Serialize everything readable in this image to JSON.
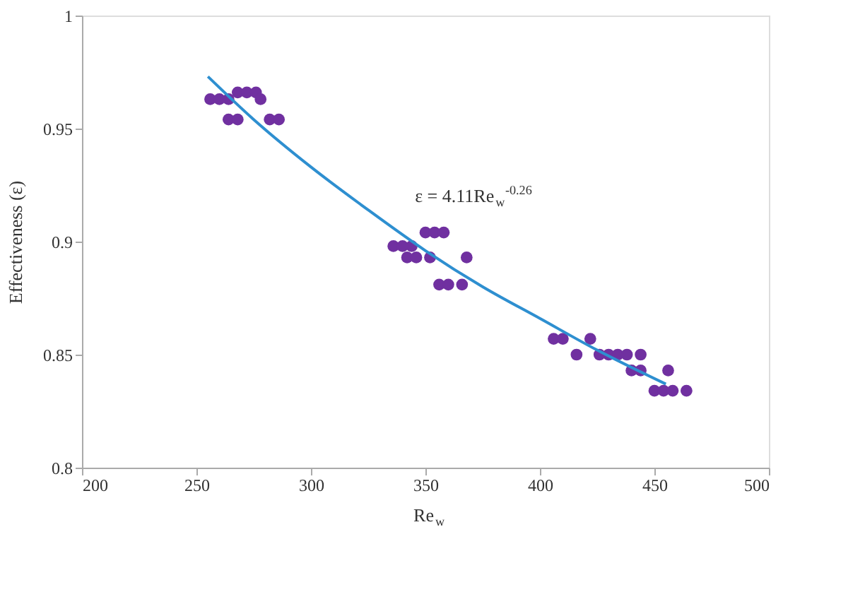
{
  "chart_data": {
    "type": "scatter",
    "xlabel": "Re$_{w}$",
    "ylabel": "Effectiveness (ε)",
    "xlim": [
      200,
      500
    ],
    "xticks": [
      200,
      250,
      300,
      350,
      400,
      450,
      500
    ],
    "ylim": [
      0.8,
      1
    ],
    "yticks": [
      0.8,
      0.85,
      0.9,
      0.95,
      1
    ],
    "grid": false,
    "marker": "circle",
    "annotations": [
      "ε = 4.11Re$_{w}$$^{-0.26}$"
    ],
    "series": [
      {
        "color": "#7030a0",
        "x": [
          256,
          260,
          264,
          268,
          272,
          276,
          278,
          264,
          268,
          282,
          286,
          336,
          340,
          344,
          350,
          354,
          358,
          342,
          346,
          352,
          356,
          360,
          366,
          368,
          406,
          410,
          422,
          416,
          426,
          430,
          434,
          438,
          444,
          440,
          444,
          456,
          450,
          454,
          458,
          464
        ],
        "values": [
          0.963,
          0.963,
          0.963,
          0.966,
          0.966,
          0.966,
          0.963,
          0.954,
          0.954,
          0.954,
          0.954,
          0.898,
          0.898,
          0.898,
          0.904,
          0.904,
          0.904,
          0.893,
          0.893,
          0.893,
          0.881,
          0.881,
          0.881,
          0.893,
          0.857,
          0.857,
          0.857,
          0.85,
          0.85,
          0.85,
          0.85,
          0.85,
          0.85,
          0.843,
          0.843,
          0.843,
          0.834,
          0.834,
          0.834,
          0.834
        ]
      },
      {
        "type": "line",
        "color": "#2e8fd0",
        "marker": "none",
        "line_style": "solid",
        "x": [
          255,
          275,
          300,
          325,
          350,
          375,
          400,
          425,
          455
        ],
        "values": [
          0.973,
          0.954,
          0.933,
          0.914,
          0.896,
          0.88,
          0.866,
          0.852,
          0.837
        ]
      }
    ]
  }
}
